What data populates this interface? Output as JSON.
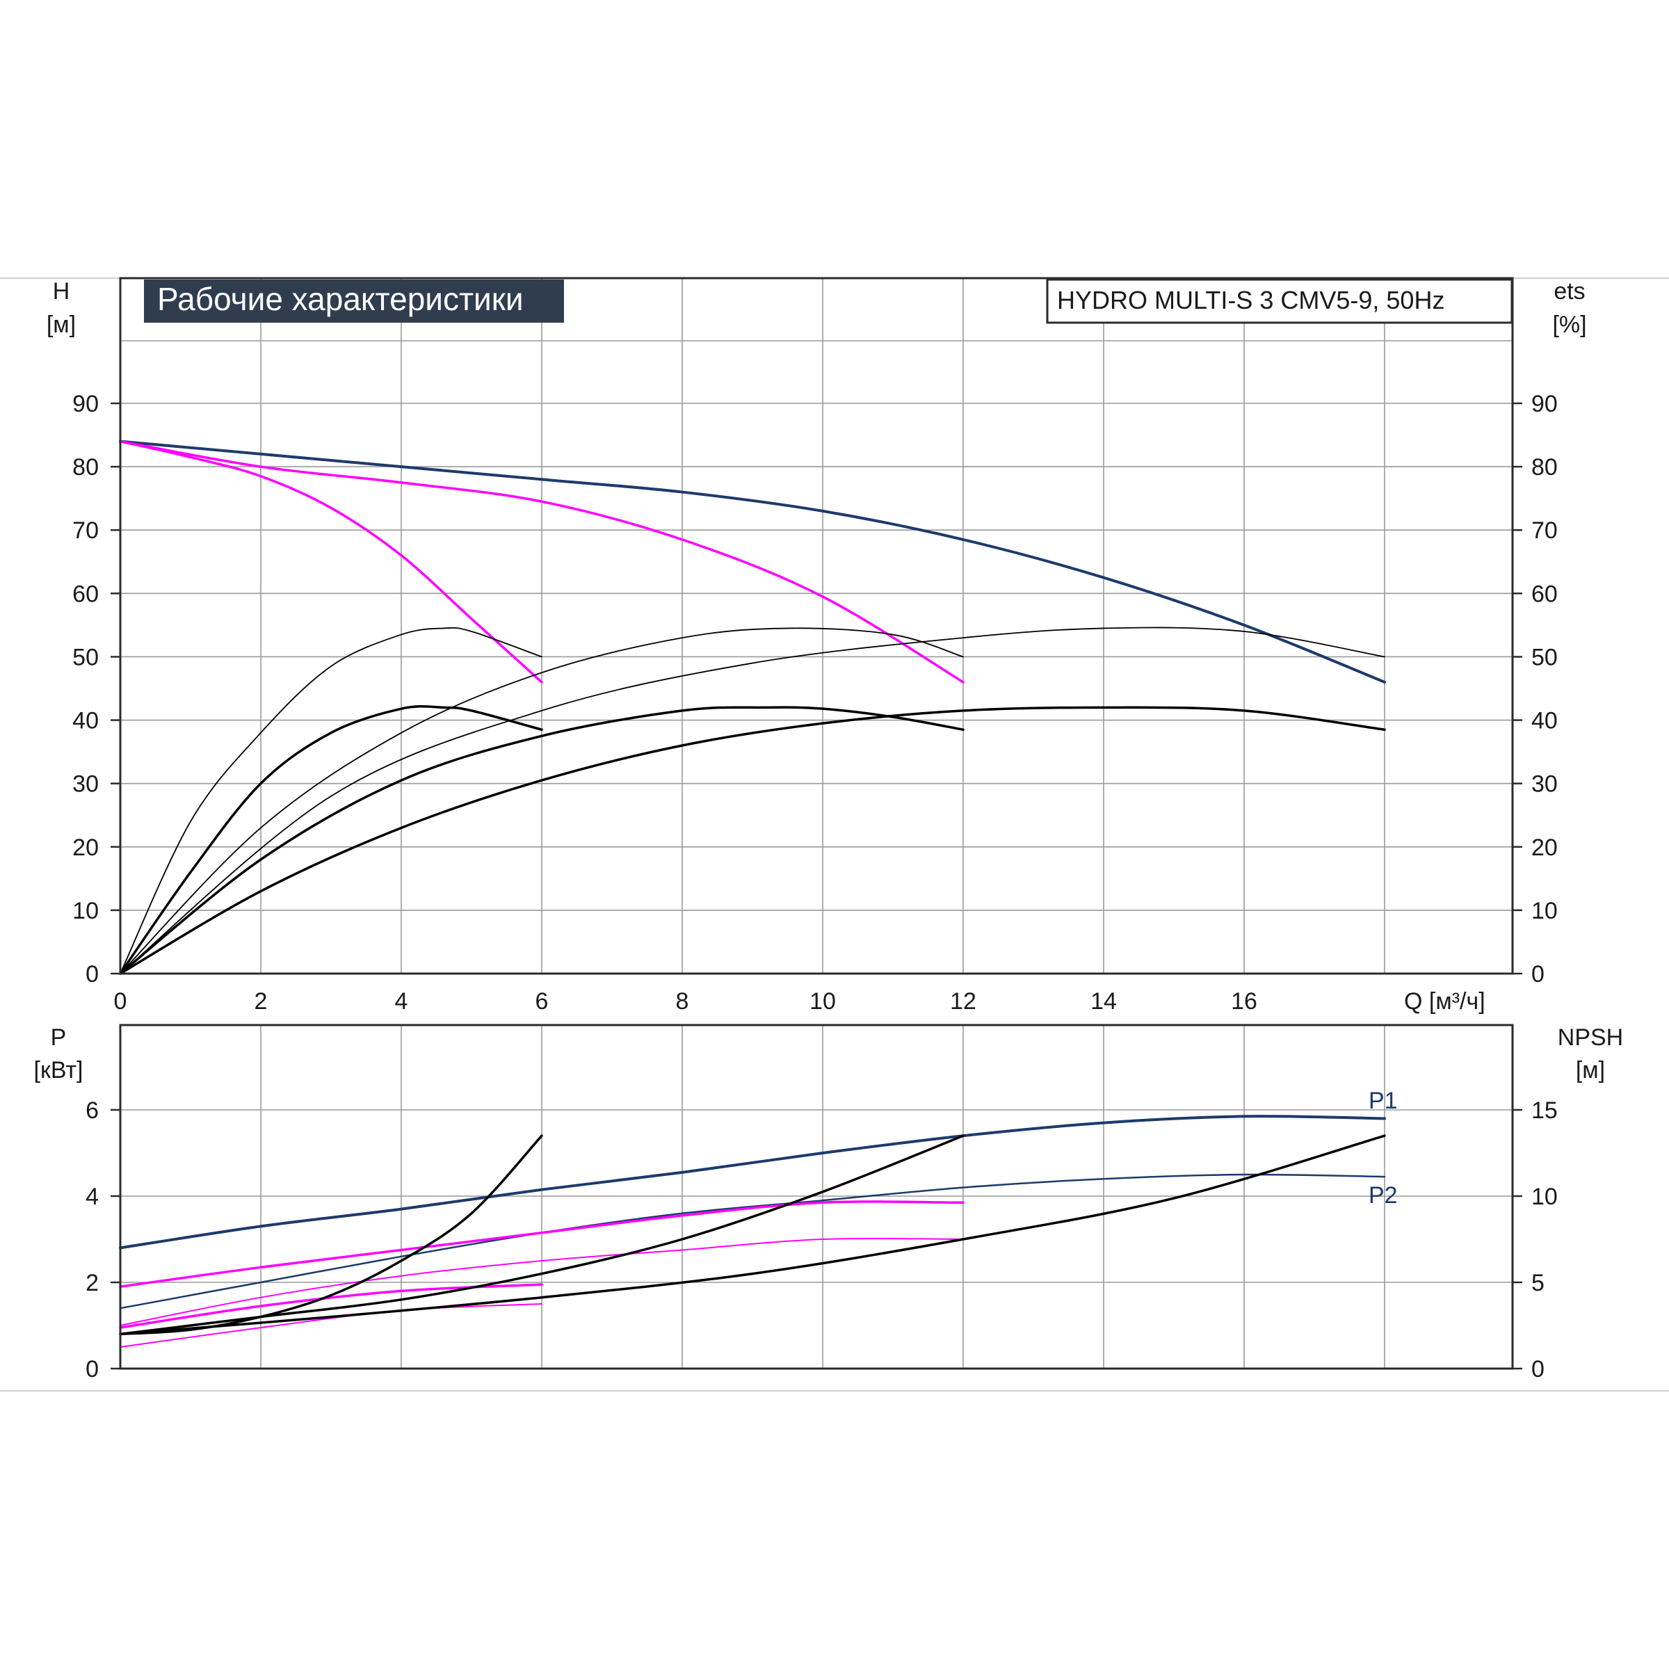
{
  "title": "Рабочие характеристики",
  "model_label": "HYDRO MULTI-S 3 CMV5-9, 50Hz",
  "colors": {
    "curve_blue": "#1d3a6b",
    "curve_magenta": "#ff00ff",
    "curve_black": "#000000",
    "title_bg": "#2f3d4f",
    "title_text": "#ffffff",
    "grid": "#9a9a9a"
  },
  "chart_data": [
    {
      "type": "line",
      "panel": "head_efficiency",
      "y_left_label": "H",
      "y_left_unit": "[м]",
      "y_right_label": "ets",
      "y_right_unit": "[%]",
      "x_label": "Q [м³/ч]",
      "xlim": [
        0,
        18
      ],
      "ylim": [
        0,
        90
      ],
      "x_ticks": [
        0,
        2,
        4,
        6,
        8,
        10,
        12,
        14,
        16
      ],
      "y_ticks": [
        0,
        10,
        20,
        30,
        40,
        50,
        60,
        70,
        80,
        90
      ],
      "grid": true,
      "series": [
        {
          "color": "#1d3a6b",
          "width": 4,
          "points": [
            [
              0,
              84
            ],
            [
              2,
              82
            ],
            [
              4,
              80
            ],
            [
              6,
              78
            ],
            [
              8,
              76
            ],
            [
              10,
              73
            ],
            [
              12,
              68.5
            ],
            [
              14,
              62.5
            ],
            [
              16,
              55
            ],
            [
              18,
              46
            ]
          ]
        },
        {
          "color": "#ff00ff",
          "width": 3.5,
          "points": [
            [
              0,
              84
            ],
            [
              2,
              80
            ],
            [
              4,
              77.5
            ],
            [
              6,
              74.5
            ],
            [
              8,
              68.5
            ],
            [
              10,
              59.5
            ],
            [
              12,
              46
            ]
          ]
        },
        {
          "color": "#ff00ff",
          "width": 3.5,
          "points": [
            [
              0,
              84
            ],
            [
              1,
              81.5
            ],
            [
              2,
              78.5
            ],
            [
              3,
              73.5
            ],
            [
              4,
              66
            ],
            [
              5,
              56
            ],
            [
              6,
              46
            ]
          ]
        },
        {
          "color": "#000000",
          "width": 1.8,
          "points": [
            [
              0,
              0
            ],
            [
              1,
              24
            ],
            [
              2,
              38
            ],
            [
              3,
              48.5
            ],
            [
              4,
              53.5
            ],
            [
              4.6,
              54.5
            ],
            [
              5,
              54
            ],
            [
              6,
              50
            ]
          ]
        },
        {
          "color": "#000000",
          "width": 3.5,
          "points": [
            [
              0,
              0
            ],
            [
              1,
              16
            ],
            [
              2,
              30
            ],
            [
              3,
              38
            ],
            [
              4,
              41.8
            ],
            [
              4.6,
              42
            ],
            [
              5,
              41.5
            ],
            [
              6,
              38.5
            ]
          ]
        },
        {
          "color": "#000000",
          "width": 1.8,
          "points": [
            [
              0,
              0
            ],
            [
              2,
              23
            ],
            [
              4,
              38
            ],
            [
              6,
              47.5
            ],
            [
              8,
              53
            ],
            [
              9.5,
              54.5
            ],
            [
              11,
              53.5
            ],
            [
              12,
              50
            ]
          ]
        },
        {
          "color": "#000000",
          "width": 3.5,
          "points": [
            [
              0,
              0
            ],
            [
              2,
              18
            ],
            [
              4,
              30.5
            ],
            [
              6,
              37.5
            ],
            [
              8,
              41.5
            ],
            [
              9.2,
              42
            ],
            [
              10,
              41.8
            ],
            [
              11,
              40.5
            ],
            [
              12,
              38.5
            ]
          ]
        },
        {
          "color": "#000000",
          "width": 1.8,
          "points": [
            [
              0,
              0
            ],
            [
              3,
              28
            ],
            [
              6,
              41.5
            ],
            [
              9,
              49
            ],
            [
              12,
              53
            ],
            [
              14,
              54.5
            ],
            [
              16,
              54
            ],
            [
              18,
              50
            ]
          ]
        },
        {
          "color": "#000000",
          "width": 3.5,
          "points": [
            [
              0,
              0
            ],
            [
              2,
              13
            ],
            [
              4,
              23
            ],
            [
              6,
              30.5
            ],
            [
              8,
              36
            ],
            [
              10,
              39.5
            ],
            [
              12,
              41.5
            ],
            [
              14,
              42
            ],
            [
              16,
              41.5
            ],
            [
              18,
              38.5
            ]
          ]
        }
      ]
    },
    {
      "type": "line",
      "panel": "power_npsh",
      "y_left_label": "P",
      "y_left_unit": "[кВт]",
      "y_right_label": "NPSH",
      "y_right_unit": "[м]",
      "xlim": [
        0,
        18
      ],
      "ylim": [
        0,
        8
      ],
      "y_right_ticks": [
        0,
        5,
        10,
        15
      ],
      "y_ticks": [
        0,
        2,
        4,
        6
      ],
      "grid": true,
      "series": [
        {
          "name": "P1",
          "color": "#1d3a6b",
          "width": 4,
          "points": [
            [
              0,
              2.8
            ],
            [
              2,
              3.3
            ],
            [
              4,
              3.7
            ],
            [
              6,
              4.15
            ],
            [
              8,
              4.55
            ],
            [
              10,
              5
            ],
            [
              12,
              5.4
            ],
            [
              14,
              5.7
            ],
            [
              16,
              5.85
            ],
            [
              18,
              5.8
            ]
          ]
        },
        {
          "name": "P2",
          "color": "#1d3a6b",
          "width": 2.5,
          "points": [
            [
              0,
              1.4
            ],
            [
              2,
              2
            ],
            [
              4,
              2.6
            ],
            [
              6,
              3.15
            ],
            [
              8,
              3.6
            ],
            [
              10,
              3.9
            ],
            [
              12,
              4.2
            ],
            [
              14,
              4.4
            ],
            [
              16,
              4.5
            ],
            [
              18,
              4.45
            ]
          ]
        },
        {
          "color": "#ff00ff",
          "width": 3.5,
          "points": [
            [
              0,
              1.9
            ],
            [
              2,
              2.35
            ],
            [
              4,
              2.75
            ],
            [
              6,
              3.15
            ],
            [
              8,
              3.55
            ],
            [
              10,
              3.85
            ],
            [
              12,
              3.85
            ]
          ]
        },
        {
          "color": "#ff00ff",
          "width": 2,
          "points": [
            [
              0,
              1
            ],
            [
              2,
              1.65
            ],
            [
              4,
              2.15
            ],
            [
              6,
              2.5
            ],
            [
              8,
              2.75
            ],
            [
              10,
              3
            ],
            [
              12,
              3
            ]
          ]
        },
        {
          "color": "#ff00ff",
          "width": 3.5,
          "points": [
            [
              0,
              0.95
            ],
            [
              2,
              1.45
            ],
            [
              4,
              1.8
            ],
            [
              6,
              1.95
            ]
          ]
        },
        {
          "color": "#ff00ff",
          "width": 2,
          "points": [
            [
              0,
              0.5
            ],
            [
              2,
              0.95
            ],
            [
              4,
              1.35
            ],
            [
              6,
              1.5
            ]
          ]
        },
        {
          "color": "#000000",
          "width": 3.5,
          "points": [
            [
              0,
              0.8
            ],
            [
              1,
              0.9
            ],
            [
              2,
              1.2
            ],
            [
              3,
              1.7
            ],
            [
              4,
              2.5
            ],
            [
              5,
              3.6
            ],
            [
              6,
              5.4
            ]
          ]
        },
        {
          "color": "#000000",
          "width": 3.5,
          "points": [
            [
              0,
              0.8
            ],
            [
              2,
              1.2
            ],
            [
              4,
              1.6
            ],
            [
              6,
              2.2
            ],
            [
              8,
              3
            ],
            [
              10,
              4.1
            ],
            [
              12,
              5.4
            ]
          ]
        },
        {
          "color": "#000000",
          "width": 3.5,
          "points": [
            [
              0,
              0.8
            ],
            [
              3,
              1.2
            ],
            [
              6,
              1.65
            ],
            [
              9,
              2.2
            ],
            [
              12,
              3
            ],
            [
              15,
              3.95
            ],
            [
              18,
              5.4
            ]
          ]
        }
      ]
    }
  ]
}
